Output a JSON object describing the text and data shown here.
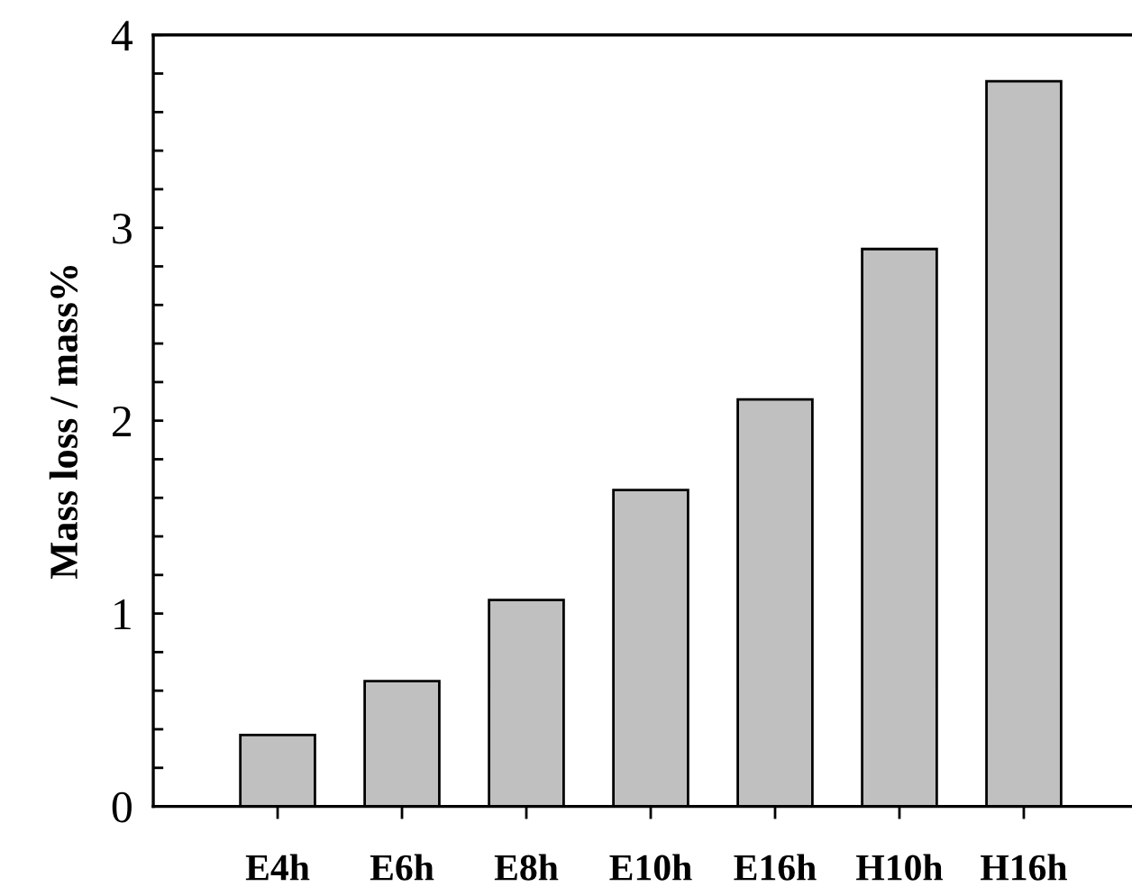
{
  "chart_data": {
    "type": "bar",
    "ylabel": "Mass loss / mass%",
    "categories": [
      "E4h",
      "E6h",
      "E8h",
      "E10h",
      "E16h",
      "H10h",
      "H16h"
    ],
    "values": [
      0.37,
      0.65,
      1.07,
      1.64,
      2.11,
      2.89,
      3.76
    ],
    "color": "#c0c0c0",
    "ylim": [
      0,
      4
    ],
    "yticks": [
      0,
      1,
      2,
      3,
      4
    ],
    "grid": false
  }
}
